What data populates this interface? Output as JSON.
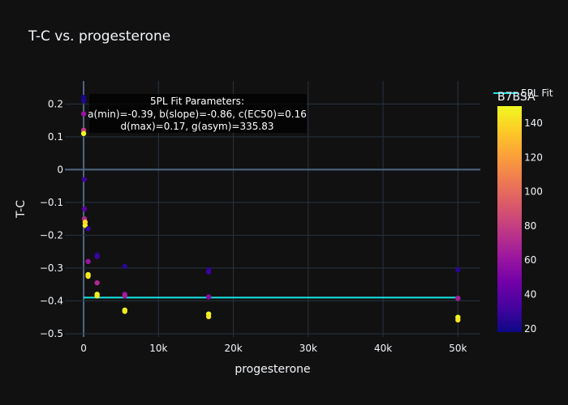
{
  "chart_data": {
    "type": "scatter",
    "title": "T-C vs. progesterone",
    "xlabel": "progesterone",
    "ylabel": "T-C",
    "xlim": [
      -2500,
      53000
    ],
    "ylim": [
      -0.51,
      0.27
    ],
    "x_ticks": [
      0,
      10000,
      20000,
      30000,
      40000,
      50000
    ],
    "x_tick_labels": [
      "0",
      "10k",
      "20k",
      "30k",
      "40k",
      "50k"
    ],
    "y_ticks": [
      -0.5,
      -0.4,
      -0.3,
      -0.2,
      -0.1,
      0,
      0.1,
      0.2
    ],
    "y_tick_labels": [
      "−0.5",
      "−0.4",
      "−0.3",
      "−0.2",
      "−0.1",
      "0",
      "0.1",
      "0.2"
    ],
    "grid": true,
    "colorbar": {
      "title": "B7BSA",
      "min": 18,
      "max": 150,
      "ticks": [
        20,
        40,
        60,
        80,
        100,
        120,
        140
      ],
      "tick_labels": [
        "20",
        "40",
        "60",
        "80",
        "100",
        "120",
        "140"
      ],
      "colors": [
        "#0d0887",
        "#46039f",
        "#7201a8",
        "#9c179e",
        "#bd3786",
        "#d8576b",
        "#ed7953",
        "#fb9f3a",
        "#fdca26",
        "#f0f921"
      ]
    },
    "points": [
      {
        "x": 0,
        "y": 0.22,
        "c": 20
      },
      {
        "x": 0,
        "y": 0.21,
        "c": 22
      },
      {
        "x": 0,
        "y": 0.17,
        "c": 60
      },
      {
        "x": 0,
        "y": 0.12,
        "c": 80
      },
      {
        "x": 0,
        "y": 0.11,
        "c": 150
      },
      {
        "x": 100,
        "y": -0.03,
        "c": 30
      },
      {
        "x": 100,
        "y": -0.12,
        "c": 40
      },
      {
        "x": 100,
        "y": -0.15,
        "c": 70
      },
      {
        "x": 200,
        "y": -0.17,
        "c": 150
      },
      {
        "x": 200,
        "y": -0.16,
        "c": 140
      },
      {
        "x": 600,
        "y": -0.18,
        "c": 28
      },
      {
        "x": 600,
        "y": -0.32,
        "c": 150
      },
      {
        "x": 600,
        "y": -0.325,
        "c": 145
      },
      {
        "x": 600,
        "y": -0.28,
        "c": 60
      },
      {
        "x": 1800,
        "y": -0.26,
        "c": 25
      },
      {
        "x": 1800,
        "y": -0.265,
        "c": 30
      },
      {
        "x": 1800,
        "y": -0.345,
        "c": 70
      },
      {
        "x": 1800,
        "y": -0.38,
        "c": 150
      },
      {
        "x": 1800,
        "y": -0.385,
        "c": 145
      },
      {
        "x": 5500,
        "y": -0.295,
        "c": 25
      },
      {
        "x": 5500,
        "y": -0.38,
        "c": 60
      },
      {
        "x": 5500,
        "y": -0.385,
        "c": 65
      },
      {
        "x": 5500,
        "y": -0.428,
        "c": 150
      },
      {
        "x": 5500,
        "y": -0.432,
        "c": 145
      },
      {
        "x": 16700,
        "y": -0.305,
        "c": 25
      },
      {
        "x": 16700,
        "y": -0.312,
        "c": 30
      },
      {
        "x": 16700,
        "y": -0.388,
        "c": 55
      },
      {
        "x": 16700,
        "y": -0.44,
        "c": 150
      },
      {
        "x": 16700,
        "y": -0.448,
        "c": 145
      },
      {
        "x": 50000,
        "y": -0.305,
        "c": 25
      },
      {
        "x": 50000,
        "y": -0.392,
        "c": 65
      },
      {
        "x": 50000,
        "y": -0.45,
        "c": 150
      },
      {
        "x": 50000,
        "y": -0.458,
        "c": 145
      }
    ],
    "fit": {
      "name": "5PL Fit",
      "color": "#17e6e6",
      "a": -0.39,
      "b": -0.86,
      "c": 0.16,
      "d": 0.17,
      "g": 335.83
    },
    "annotation": [
      "5PL Fit Parameters:",
      "a(min)=-0.39, b(slope)=-0.86, c(EC50)=0.16",
      "d(max)=0.17, g(asym)=335.83"
    ],
    "legend_position": "top-right"
  }
}
